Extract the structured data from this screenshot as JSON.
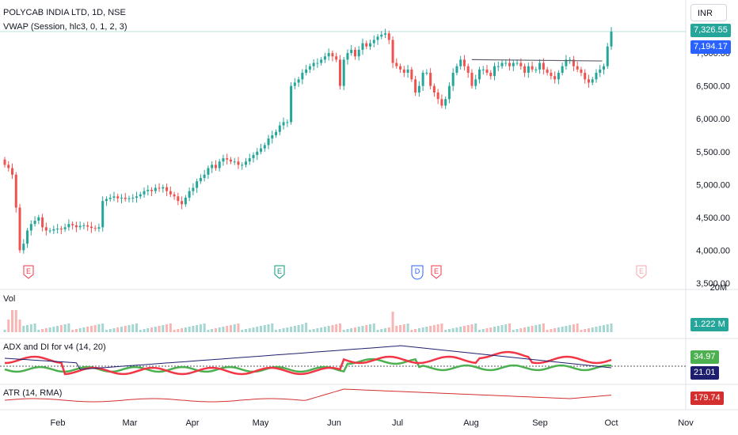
{
  "header": {
    "symbol_title": "POLYCAB INDIA LTD, 1D, NSE",
    "vwap_label": "VWAP (Session, hlc3, 0, 1, 2, 3)",
    "currency_button": "INR"
  },
  "price_tags": {
    "last_price": "7,326.55",
    "vwap_value": "7,194.17"
  },
  "price_axis": [
    "7,000.00",
    "6,500.00",
    "6,000.00",
    "5,500.00",
    "5,000.00",
    "4,500.00",
    "4,000.00",
    "3,500.00"
  ],
  "time_axis": [
    "Feb",
    "Mar",
    "Apr",
    "May",
    "Jun",
    "Jul",
    "Aug",
    "Sep",
    "Oct",
    "Nov"
  ],
  "volume_pane": {
    "label": "Vol",
    "top_scale": "20M",
    "value": "1.222 M"
  },
  "adx_pane": {
    "label": "ADX and DI for v4 (14, 20)",
    "value_green": "34.97",
    "value_navy": "21.01"
  },
  "atr_pane": {
    "label": "ATR (14, RMA)",
    "value": "179.74"
  },
  "event_markers": [
    {
      "type": "E",
      "x_month": "Jan",
      "color": "#f23645",
      "filled": false
    },
    {
      "type": "E",
      "x_month": "May",
      "color": "#089981",
      "filled": false
    },
    {
      "type": "D",
      "x_month": "Jul",
      "color": "#2962ff",
      "filled": false
    },
    {
      "type": "E",
      "x_month": "Jul",
      "color": "#f23645",
      "filled": false
    },
    {
      "type": "E",
      "x_month": "Oct",
      "color": "#f7a4ab",
      "filled": false
    }
  ],
  "colors": {
    "up": "#26a69a",
    "down": "#ef5350",
    "vwap_tag": "#2962ff",
    "last_tag": "#26a69a",
    "adx_green": "#4caf50",
    "adx_red": "#f23645",
    "adx_navy": "#1e1e6e",
    "atr": "#d32f2f"
  },
  "chart_data": {
    "type": "candlestick",
    "title": "POLYCAB INDIA LTD, 1D, NSE",
    "y_range": [
      3500,
      7350
    ],
    "last_close": 7326.55,
    "vwap": 7194.17,
    "trendline": {
      "from": [
        "Aug",
        6900
      ],
      "to": [
        "Sep-end",
        6880
      ]
    },
    "closes": [
      5300,
      5250,
      5150,
      4650,
      4000,
      4100,
      4300,
      4400,
      4450,
      4500,
      4350,
      4300,
      4300,
      4320,
      4330,
      4320,
      4350,
      4400,
      4380,
      4350,
      4370,
      4380,
      4360,
      4340,
      4330,
      4350,
      4750,
      4780,
      4800,
      4820,
      4790,
      4800,
      4780,
      4790,
      4800,
      4820,
      4850,
      4900,
      4920,
      4900,
      4950,
      4940,
      4960,
      4900,
      4850,
      4820,
      4750,
      4700,
      4800,
      4900,
      4950,
      5050,
      5100,
      5150,
      5250,
      5300,
      5250,
      5350,
      5400,
      5380,
      5350,
      5350,
      5300,
      5300,
      5350,
      5400,
      5450,
      5500,
      5550,
      5600,
      5700,
      5750,
      5800,
      5900,
      5950,
      5950,
      6500,
      6550,
      6600,
      6700,
      6750,
      6800,
      6850,
      6850,
      6900,
      6950,
      7000,
      6950,
      6900,
      6500,
      6900,
      7000,
      7050,
      6950,
      7050,
      7150,
      7100,
      7150,
      7200,
      7250,
      7280,
      7300,
      7200,
      6850,
      6800,
      6750,
      6700,
      6750,
      6600,
      6400,
      6500,
      6700,
      6700,
      6500,
      6400,
      6300,
      6200,
      6300,
      6500,
      6700,
      6800,
      6900,
      6800,
      6700,
      6500,
      6600,
      6750,
      6750,
      6700,
      6650,
      6800,
      6800,
      6850,
      6850,
      6800,
      6850,
      6850,
      6800,
      6700,
      6800,
      6750,
      6750,
      6850,
      6750,
      6700,
      6650,
      6600,
      6700,
      6800,
      6900,
      6900,
      6800,
      6750,
      6700,
      6600,
      6550,
      6600,
      6700,
      6750,
      6800,
      7100,
      7326.55
    ],
    "volume_scale": "20M",
    "volume_last": "1.222 M",
    "adx_last": {
      "green": 34.97,
      "navy": 21.01
    },
    "atr_last": 179.74,
    "x_labels": [
      "Feb",
      "Mar",
      "Apr",
      "May",
      "Jun",
      "Jul",
      "Aug",
      "Sep",
      "Oct",
      "Nov"
    ]
  }
}
